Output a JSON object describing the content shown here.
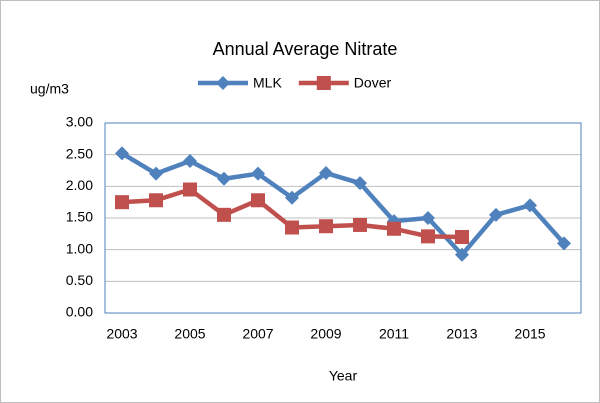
{
  "chart_data": {
    "type": "line",
    "title": "Annual Average Nitrate",
    "y_label": "ug/m3",
    "x_label": "Year",
    "categories": [
      "2003",
      null,
      "2005",
      null,
      "2007",
      null,
      "2009",
      null,
      "2011",
      null,
      "2013",
      null,
      "2015",
      null
    ],
    "series": [
      {
        "name": "MLK",
        "color": "#4f81bd",
        "marker": "diamond",
        "values": [
          2.52,
          2.2,
          2.4,
          2.12,
          2.2,
          1.82,
          2.21,
          2.05,
          1.45,
          1.5,
          0.92,
          1.55,
          1.7,
          1.1
        ]
      },
      {
        "name": "Dover",
        "color": "#c0504d",
        "marker": "square",
        "values": [
          1.75,
          1.78,
          1.95,
          1.55,
          1.78,
          1.35,
          1.37,
          1.39,
          1.33,
          1.21,
          1.2,
          null,
          null,
          null
        ]
      }
    ],
    "ylim": [
      0,
      3
    ],
    "yticks": [
      {
        "value": 0,
        "label": "0.00"
      },
      {
        "value": 0.5,
        "label": "0.50"
      },
      {
        "value": 1,
        "label": "1.00"
      },
      {
        "value": 1.5,
        "label": "1.50"
      },
      {
        "value": 2,
        "label": "2.00"
      },
      {
        "value": 2.5,
        "label": "2.50"
      },
      {
        "value": 3,
        "label": "3.00"
      }
    ],
    "grid": true
  }
}
